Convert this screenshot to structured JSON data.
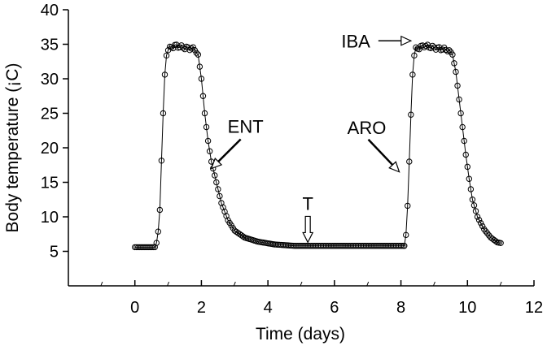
{
  "chart_data": {
    "type": "scatter",
    "xlabel": "Time (days)",
    "ylabel": "Body temperature (¡C)",
    "xlim": [
      -2,
      12
    ],
    "ylim": [
      0,
      40
    ],
    "xticks": [
      "0",
      "2",
      "4",
      "6",
      "8",
      "10",
      "12"
    ],
    "yticks": [
      "5",
      "10",
      "15",
      "20",
      "25",
      "30",
      "35",
      "40"
    ],
    "grid": false,
    "legend": "none",
    "line_color": "#000000",
    "marker": "open-circle",
    "segments": [
      {
        "knots": [
          [
            0.0,
            5.6
          ],
          [
            0.6,
            5.6
          ],
          [
            0.68,
            6.6
          ],
          [
            0.75,
            11
          ],
          [
            0.82,
            21
          ],
          [
            0.88,
            29
          ],
          [
            0.93,
            33
          ],
          [
            1.0,
            34.3
          ],
          [
            1.2,
            34.8
          ],
          [
            1.5,
            34.5
          ],
          [
            1.8,
            34.3
          ],
          [
            1.9,
            33.5
          ],
          [
            2.0,
            30
          ],
          [
            2.1,
            25
          ],
          [
            2.2,
            21
          ],
          [
            2.3,
            18
          ],
          [
            2.45,
            15
          ],
          [
            2.6,
            12
          ],
          [
            2.8,
            9.5
          ],
          [
            3.0,
            8.0
          ],
          [
            3.3,
            7.0
          ],
          [
            3.7,
            6.4
          ],
          [
            4.2,
            6.0
          ],
          [
            4.8,
            5.8
          ],
          [
            5.5,
            5.8
          ],
          [
            6.5,
            5.8
          ],
          [
            8.0,
            5.8
          ],
          [
            8.1,
            5.8
          ]
        ],
        "step": 0.05
      },
      {
        "knots": [
          [
            8.1,
            5.8
          ],
          [
            8.17,
            8
          ],
          [
            8.22,
            14
          ],
          [
            8.28,
            22
          ],
          [
            8.33,
            29
          ],
          [
            8.38,
            33
          ],
          [
            8.45,
            34.3
          ],
          [
            8.7,
            34.8
          ],
          [
            9.0,
            34.5
          ],
          [
            9.4,
            34.2
          ],
          [
            9.55,
            33.5
          ],
          [
            9.65,
            31
          ],
          [
            9.75,
            27
          ],
          [
            9.85,
            23
          ],
          [
            9.95,
            19
          ],
          [
            10.05,
            15.5
          ],
          [
            10.15,
            12.5
          ],
          [
            10.3,
            10
          ],
          [
            10.5,
            8.2
          ],
          [
            10.7,
            7
          ],
          [
            10.9,
            6.3
          ],
          [
            11.0,
            6.2
          ]
        ],
        "step": 0.05
      }
    ],
    "annotations": [
      {
        "text": "IBA",
        "arrow": "right",
        "target": [
          8.3,
          35.5
        ]
      },
      {
        "text": "ENT",
        "arrow": "down-left",
        "target": [
          2.3,
          17
        ]
      },
      {
        "text": "ARO",
        "arrow": "down-right",
        "target": [
          7.95,
          16.5
        ]
      },
      {
        "text": "T",
        "arrow": "down",
        "target": [
          5.2,
          6.3
        ]
      }
    ]
  }
}
